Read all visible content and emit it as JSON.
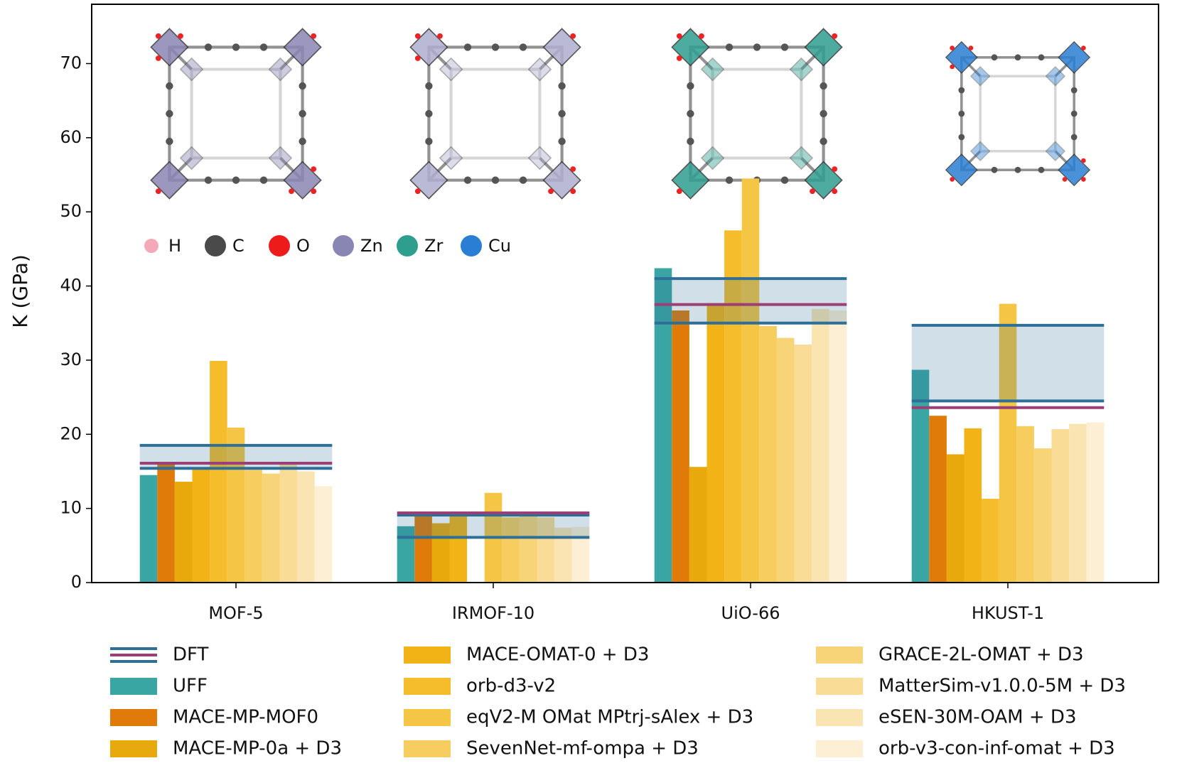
{
  "chart_data": {
    "type": "bar",
    "ylabel": "K (GPa)",
    "categories": [
      "MOF-5",
      "IRMOF-10",
      "UiO-66",
      "HKUST-1"
    ],
    "ylim": [
      0,
      78
    ],
    "yticks": [
      0,
      10,
      20,
      30,
      40,
      50,
      60,
      70
    ],
    "dft": {
      "name": "DFT",
      "color": "#2e6f97",
      "mean_color": "#9b3f77",
      "lower": [
        15.4,
        6.1,
        35.0,
        24.5
      ],
      "mean": [
        16.1,
        9.4,
        37.5,
        23.6
      ],
      "upper": [
        18.5,
        9.1,
        41.0,
        34.7
      ]
    },
    "series": [
      {
        "name": "UFF",
        "color": "#3aa6a3",
        "values": [
          14.5,
          7.6,
          42.4,
          28.7
        ]
      },
      {
        "name": "MACE-MP-MOF0",
        "color": "#e07b0a",
        "values": [
          16.2,
          9.0,
          36.7,
          22.5
        ]
      },
      {
        "name": "MACE-MP-0a + D3",
        "color": "#e8a90c",
        "values": [
          13.6,
          8.0,
          15.6,
          17.3
        ]
      },
      {
        "name": "MACE-OMAT-0 + D3",
        "color": "#f2b316",
        "values": [
          15.3,
          9.0,
          37.7,
          20.8
        ]
      },
      {
        "name": "orb-d3-v2",
        "color": "#f5bd2c",
        "values": [
          29.9,
          null,
          47.5,
          11.3
        ]
      },
      {
        "name": "eqV2-M OMat MPtrj-sAlex + D3",
        "color": "#f5c545",
        "values": [
          20.9,
          12.1,
          54.5,
          37.6
        ]
      },
      {
        "name": "SevenNet-mf-ompa + D3",
        "color": "#f6cd5e",
        "values": [
          15.2,
          8.8,
          34.6,
          21.1
        ]
      },
      {
        "name": "GRACE-2L-OMAT + D3",
        "color": "#f7d478",
        "values": [
          14.7,
          8.9,
          33.0,
          18.1
        ]
      },
      {
        "name": "MatterSim-v1.0.0-5M + D3",
        "color": "#f9dc95",
        "values": [
          15.9,
          8.8,
          32.1,
          20.7
        ]
      },
      {
        "name": "eSEN-30M-OAM + D3",
        "color": "#fae5b2",
        "values": [
          15.0,
          7.4,
          36.9,
          21.4
        ]
      },
      {
        "name": "orb-v3-con-inf-omat + D3",
        "color": "#fcefd3",
        "values": [
          13.0,
          7.5,
          36.7,
          21.6
        ]
      }
    ],
    "element_legend": [
      {
        "symbol": "H",
        "color": "#f5a9b8"
      },
      {
        "symbol": "C",
        "color": "#4a4a4a"
      },
      {
        "symbol": "O",
        "color": "#ee1b1b"
      },
      {
        "symbol": "Zn",
        "color": "#8a86b3"
      },
      {
        "symbol": "Zr",
        "color": "#2e9e8f"
      },
      {
        "symbol": "Cu",
        "color": "#2a7fd4"
      }
    ]
  }
}
